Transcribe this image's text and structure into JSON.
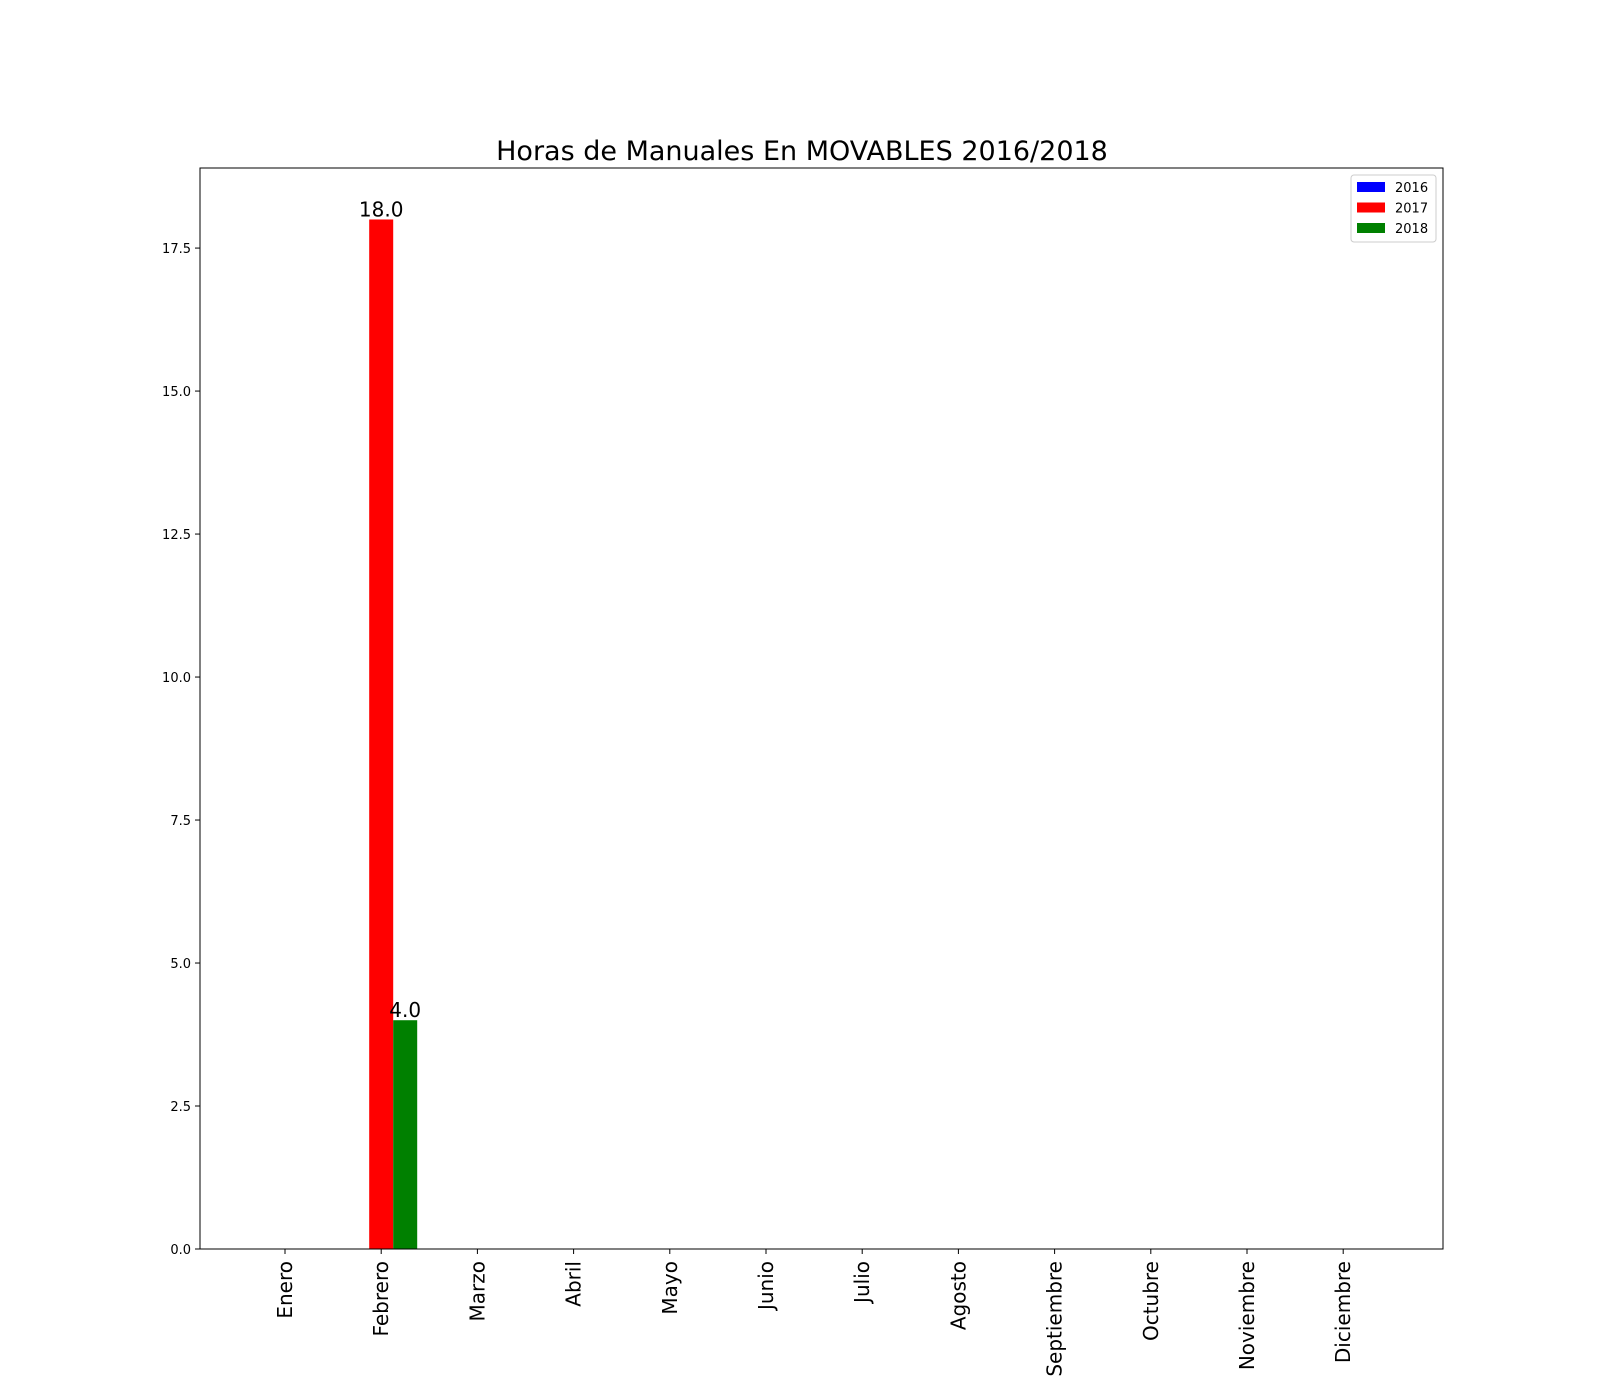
{
  "chart_data": {
    "type": "bar",
    "title": "Horas de Manuales En MOVABLES 2016/2018",
    "xlabel": "",
    "ylabel": "",
    "categories": [
      "Enero",
      "Febrero",
      "Marzo",
      "Abril",
      "Mayo",
      "Junio",
      "Julio",
      "Agosto",
      "Septiembre",
      "Octubre",
      "Noviembre",
      "Diciembre"
    ],
    "series": [
      {
        "name": "2016",
        "color": "#0000ff",
        "values": [
          0,
          0,
          0,
          0,
          0,
          0,
          0,
          0,
          0,
          0,
          0,
          0
        ]
      },
      {
        "name": "2017",
        "color": "#ff0000",
        "values": [
          0,
          18.0,
          0,
          0,
          0,
          0,
          0,
          0,
          0,
          0,
          0,
          0
        ]
      },
      {
        "name": "2018",
        "color": "#008000",
        "values": [
          0,
          4.0,
          0,
          0,
          0,
          0,
          0,
          0,
          0,
          0,
          0,
          0
        ]
      }
    ],
    "data_labels": [
      {
        "series": "2017",
        "category": "Febrero",
        "text": "18.0"
      },
      {
        "series": "2018",
        "category": "Febrero",
        "text": "4.0"
      }
    ],
    "yticks": [
      "0.0",
      "2.5",
      "5.0",
      "7.5",
      "10.0",
      "12.5",
      "15.0",
      "17.5"
    ],
    "ylim": [
      0,
      18.9
    ],
    "grid": false,
    "legend_position": "top-right"
  }
}
